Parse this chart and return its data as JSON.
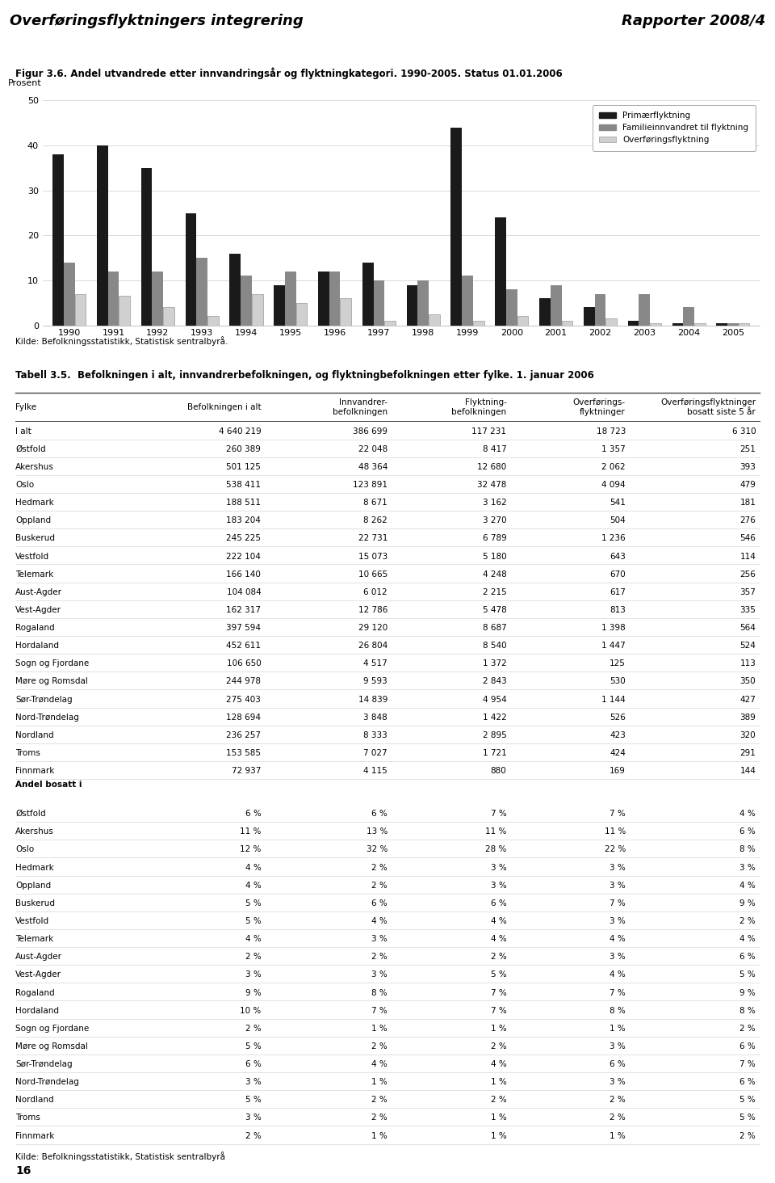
{
  "header_left": "Overføringsflyktningers integrering",
  "header_right": "Rapporter 2008/4",
  "fig_title": "Figur 3.6. Andel utvandrede etter innvandringsår og flyktningkategori. 1990-2005. Status 01.01.2006",
  "ylabel": "Prosent",
  "yticks": [
    0,
    10,
    20,
    30,
    40,
    50
  ],
  "years": [
    1990,
    1991,
    1992,
    1993,
    1994,
    1995,
    1996,
    1997,
    1998,
    1999,
    2000,
    2001,
    2002,
    2003,
    2004,
    2005
  ],
  "primary": [
    38,
    40,
    35,
    25,
    16,
    9,
    12,
    14,
    9,
    44,
    24,
    6,
    4,
    1,
    0.5,
    0.5
  ],
  "family": [
    14,
    12,
    12,
    15,
    11,
    12,
    12,
    10,
    10,
    11,
    8,
    9,
    7,
    7,
    4,
    0.5
  ],
  "overf": [
    7,
    6.5,
    4,
    2,
    7,
    5,
    6,
    1,
    2.5,
    1,
    2,
    1,
    1.5,
    0.5,
    0.5,
    0.5
  ],
  "legend_labels": [
    "Primærflyktning",
    "Familieinnvandret til flyktning",
    "Overføringsflyktning"
  ],
  "legend_colors": [
    "#1a1a1a",
    "#888888",
    "#d0d0d0"
  ],
  "kilde_chart": "Kilde: Befolkningsstatistikk, Statistisk sentralbyrå.",
  "table_title": "Tabell 3.5.  Befolkningen i alt, innvandrerbefolkningen, og flyktningbefolkningen etter fylke. 1. januar 2006",
  "col_headers": [
    "Fylke",
    "Befolkningen i alt",
    "Innvandrer-\nbefolkningen",
    "Flyktning-\nbefolkningen",
    "Overførings-\nflyktninger",
    "Overføringsflyktninger\nbosatt siste 5 år"
  ],
  "rows": [
    [
      "I alt",
      "4 640 219",
      "386 699",
      "117 231",
      "18 723",
      "6 310"
    ],
    [
      "Østfold",
      "260 389",
      "22 048",
      "8 417",
      "1 357",
      "251"
    ],
    [
      "Akershus",
      "501 125",
      "48 364",
      "12 680",
      "2 062",
      "393"
    ],
    [
      "Oslo",
      "538 411",
      "123 891",
      "32 478",
      "4 094",
      "479"
    ],
    [
      "Hedmark",
      "188 511",
      "8 671",
      "3 162",
      "541",
      "181"
    ],
    [
      "Oppland",
      "183 204",
      "8 262",
      "3 270",
      "504",
      "276"
    ],
    [
      "Buskerud",
      "245 225",
      "22 731",
      "6 789",
      "1 236",
      "546"
    ],
    [
      "Vestfold",
      "222 104",
      "15 073",
      "5 180",
      "643",
      "114"
    ],
    [
      "Telemark",
      "166 140",
      "10 665",
      "4 248",
      "670",
      "256"
    ],
    [
      "Aust-Agder",
      "104 084",
      "6 012",
      "2 215",
      "617",
      "357"
    ],
    [
      "Vest-Agder",
      "162 317",
      "12 786",
      "5 478",
      "813",
      "335"
    ],
    [
      "Rogaland",
      "397 594",
      "29 120",
      "8 687",
      "1 398",
      "564"
    ],
    [
      "Hordaland",
      "452 611",
      "26 804",
      "8 540",
      "1 447",
      "524"
    ],
    [
      "Sogn og Fjordane",
      "106 650",
      "4 517",
      "1 372",
      "125",
      "113"
    ],
    [
      "Møre og Romsdal",
      "244 978",
      "9 593",
      "2 843",
      "530",
      "350"
    ],
    [
      "Sør-Trøndelag",
      "275 403",
      "14 839",
      "4 954",
      "1 144",
      "427"
    ],
    [
      "Nord-Trøndelag",
      "128 694",
      "3 848",
      "1 422",
      "526",
      "389"
    ],
    [
      "Nordland",
      "236 257",
      "8 333",
      "2 895",
      "423",
      "320"
    ],
    [
      "Troms",
      "153 585",
      "7 027",
      "1 721",
      "424",
      "291"
    ],
    [
      "Finnmark",
      "72 937",
      "4 115",
      "880",
      "169",
      "144"
    ]
  ],
  "andel_header": "Andel bosatt i",
  "andel_rows": [
    [
      "Østfold",
      "6 %",
      "6 %",
      "7 %",
      "7 %",
      "4 %"
    ],
    [
      "Akershus",
      "11 %",
      "13 %",
      "11 %",
      "11 %",
      "6 %"
    ],
    [
      "Oslo",
      "12 %",
      "32 %",
      "28 %",
      "22 %",
      "8 %"
    ],
    [
      "Hedmark",
      "4 %",
      "2 %",
      "3 %",
      "3 %",
      "3 %"
    ],
    [
      "Oppland",
      "4 %",
      "2 %",
      "3 %",
      "3 %",
      "4 %"
    ],
    [
      "Buskerud",
      "5 %",
      "6 %",
      "6 %",
      "7 %",
      "9 %"
    ],
    [
      "Vestfold",
      "5 %",
      "4 %",
      "4 %",
      "3 %",
      "2 %"
    ],
    [
      "Telemark",
      "4 %",
      "3 %",
      "4 %",
      "4 %",
      "4 %"
    ],
    [
      "Aust-Agder",
      "2 %",
      "2 %",
      "2 %",
      "3 %",
      "6 %"
    ],
    [
      "Vest-Agder",
      "3 %",
      "3 %",
      "5 %",
      "4 %",
      "5 %"
    ],
    [
      "Rogaland",
      "9 %",
      "8 %",
      "7 %",
      "7 %",
      "9 %"
    ],
    [
      "Hordaland",
      "10 %",
      "7 %",
      "7 %",
      "8 %",
      "8 %"
    ],
    [
      "Sogn og Fjordane",
      "2 %",
      "1 %",
      "1 %",
      "1 %",
      "2 %"
    ],
    [
      "Møre og Romsdal",
      "5 %",
      "2 %",
      "2 %",
      "3 %",
      "6 %"
    ],
    [
      "Sør-Trøndelag",
      "6 %",
      "4 %",
      "4 %",
      "6 %",
      "7 %"
    ],
    [
      "Nord-Trøndelag",
      "3 %",
      "1 %",
      "1 %",
      "3 %",
      "6 %"
    ],
    [
      "Nordland",
      "5 %",
      "2 %",
      "2 %",
      "2 %",
      "5 %"
    ],
    [
      "Troms",
      "3 %",
      "2 %",
      "1 %",
      "2 %",
      "5 %"
    ],
    [
      "Finnmark",
      "2 %",
      "1 %",
      "1 %",
      "1 %",
      "2 %"
    ]
  ],
  "kilde_table": "Kilde: Befolkningsstatistikk, Statistisk sentralbyrå",
  "page_number": "16",
  "bar_width": 0.25
}
